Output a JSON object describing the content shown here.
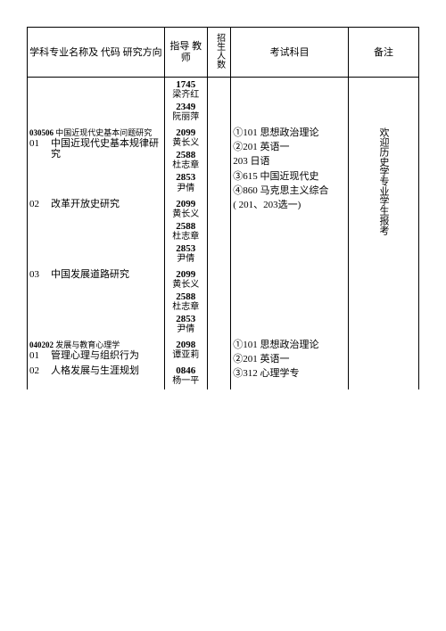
{
  "headers": {
    "major": "学科专业名称及\n代码\n研究方向",
    "advisor": "指导\n教师",
    "quota": "招生人数",
    "exam": "考试科目",
    "note": "备注"
  },
  "pre_advisors": [
    {
      "code": "1745",
      "name": "梁齐红"
    },
    {
      "code": "2349",
      "name": "阮丽萍"
    }
  ],
  "categories": [
    {
      "code": "030506",
      "title": "中国近现代史基本问题研究",
      "exam_lines": [
        "①101 思想政治理论",
        "②201 英语一",
        "  203 日语",
        "③615 中国近现代史",
        "④860 马克思主义综合",
        "( 201、203选一)"
      ],
      "note": "欢迎历史学专业学生报考",
      "directions": [
        {
          "num": "01",
          "title": "中国近现代史基本规律研究",
          "advisors": [
            {
              "code": "2099",
              "name": "黄长义"
            },
            {
              "code": "2588",
              "name": "杜志章"
            },
            {
              "code": "2853",
              "name": "尹倩"
            }
          ]
        },
        {
          "num": "02",
          "title": "改革开放史研究",
          "advisors": [
            {
              "code": "2099",
              "name": "黄长义"
            },
            {
              "code": "2588",
              "name": "杜志章"
            },
            {
              "code": "2853",
              "name": "尹倩"
            }
          ]
        },
        {
          "num": "03",
          "title": "中国发展道路研究",
          "advisors": [
            {
              "code": "2099",
              "name": "黄长义"
            },
            {
              "code": "2588",
              "name": "杜志章"
            },
            {
              "code": "2853",
              "name": "尹倩"
            }
          ]
        }
      ]
    },
    {
      "code": "040202",
      "title": "发展与教育心理学",
      "exam_lines": [
        "①101 思想政治理论",
        "②201 英语一",
        "③312 心理学专"
      ],
      "note": "",
      "directions": [
        {
          "num": "01",
          "title": "管理心理与组织行为",
          "advisors": [
            {
              "code": "2098",
              "name": "谭亚莉"
            }
          ]
        },
        {
          "num": "02",
          "title": "人格发展与生涯规划",
          "advisors": [
            {
              "code": "0846",
              "name": "杨一平"
            }
          ]
        }
      ]
    }
  ]
}
